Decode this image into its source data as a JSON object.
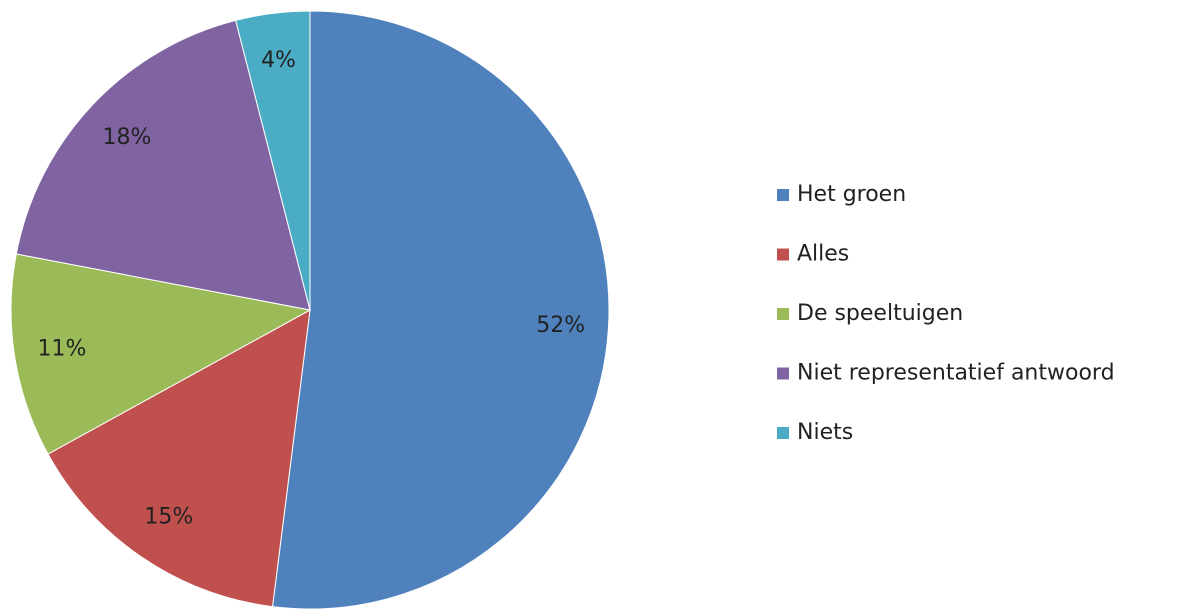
{
  "chart_data": {
    "type": "pie",
    "categories": [
      "Het groen",
      "Alles",
      "De speeltuigen",
      "Niet representatief antwoord",
      "Niets"
    ],
    "values": [
      52,
      15,
      11,
      18,
      4
    ],
    "value_labels": [
      "52%",
      "15%",
      "11%",
      "18%",
      "4%"
    ],
    "colors": [
      "#4f81bd",
      "#c0504d",
      "#9bbb59",
      "#8064a2",
      "#4bacc6"
    ],
    "legend": "right"
  }
}
